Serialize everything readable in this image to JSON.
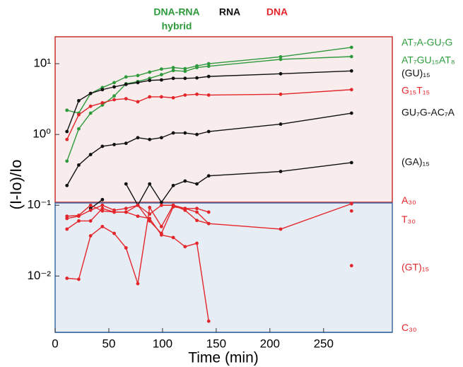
{
  "chart_data": {
    "type": "line",
    "xlabel": "Time (min)",
    "ylabel": "(I-Io)/Io",
    "log_y": true,
    "xlim": [
      0,
      314
    ],
    "xticks": [
      0,
      50,
      100,
      150,
      200,
      250
    ],
    "ylim": [
      0.0016,
      24
    ],
    "yticks": [
      {
        "value": 0.01,
        "label": "10⁻²"
      },
      {
        "value": 0.1,
        "label": "10⁻¹"
      },
      {
        "value": 1,
        "label": "10⁰"
      },
      {
        "value": 10,
        "label": "10¹"
      }
    ],
    "group_labels": [
      {
        "lines": [
          "DNA-RNA",
          "hybrid"
        ],
        "color": "#2e9a3c"
      },
      {
        "lines": [
          "RNA"
        ],
        "color": "#111111"
      },
      {
        "lines": [
          "DNA"
        ],
        "color": "#e3262b"
      }
    ],
    "x": [
      11,
      22,
      33,
      44,
      55,
      66,
      77,
      88,
      99,
      110,
      121,
      132,
      143,
      210,
      276
    ],
    "series": [
      {
        "name": "AT₇A-GU₇G",
        "color": "#2e9a3c",
        "values": [
          2.2,
          2.0,
          3.8,
          4.6,
          5.4,
          6.5,
          6.8,
          7.6,
          8.4,
          8.8,
          8.5,
          9.3,
          10,
          12.5,
          17
        ]
      },
      {
        "name": "AT₇GU₁₅AT₈",
        "color": "#2e9a3c",
        "values": [
          0.42,
          1.2,
          2.0,
          2.6,
          3.5,
          5.2,
          5.6,
          6.2,
          7.0,
          8.0,
          7.8,
          8.8,
          9.2,
          11.5,
          12.6
        ]
      },
      {
        "name": "(GU)₁₅",
        "color": "#111111",
        "values": [
          1.1,
          3.0,
          3.8,
          4.3,
          4.7,
          5.1,
          5.4,
          5.8,
          5.9,
          6.2,
          6.2,
          6.3,
          6.6,
          7.2,
          7.9
        ]
      },
      {
        "name": "G₁₅T₁₅",
        "color": "#e3262b",
        "values": [
          0.85,
          1.9,
          2.5,
          2.8,
          3.1,
          3.2,
          2.9,
          3.4,
          3.4,
          3.3,
          3.6,
          3.7,
          3.6,
          3.7,
          4.3
        ]
      },
      {
        "name": "GU₇G-AC₇A",
        "color": "#111111",
        "values": [
          0.19,
          0.37,
          0.52,
          0.68,
          0.72,
          0.75,
          0.9,
          0.85,
          0.9,
          1.05,
          1.05,
          1.0,
          1.1,
          1.4,
          2.0
        ]
      },
      {
        "name": "(GA)₁₅",
        "color": "#111111",
        "values": [
          null,
          null,
          0.09,
          0.12,
          null,
          0.2,
          0.1,
          0.2,
          0.11,
          0.19,
          0.22,
          0.2,
          0.26,
          0.3,
          0.4
        ]
      },
      {
        "name": "A₃₀",
        "color": "#e3262b",
        "values": [
          0.065,
          0.07,
          0.085,
          0.1,
          0.085,
          0.09,
          0.1,
          0.075,
          0.1,
          0.1,
          0.09,
          0.08,
          0.055,
          0.046,
          0.105
        ]
      },
      {
        "name": "T₃₀",
        "color": "#e3262b",
        "values": [
          0.07,
          0.072,
          0.1,
          0.083,
          0.08,
          0.08,
          0.1,
          0.06,
          0.04,
          0.095,
          0.09,
          0.09,
          0.08,
          null,
          0.083
        ]
      },
      {
        "name": "(GT)₁₅",
        "color": "#e3262b",
        "values": [
          0.0093,
          0.009,
          0.037,
          0.05,
          0.04,
          0.025,
          0.0078,
          0.093,
          0.05,
          0.1,
          0.085,
          0.061,
          0.055,
          null,
          0.014
        ]
      },
      {
        "name": "C₃₀",
        "color": "#e3262b",
        "values": [
          0.046,
          0.06,
          0.06,
          0.09,
          0.08,
          0.08,
          0.07,
          0.065,
          0.038,
          0.035,
          0.026,
          0.029,
          0.0023,
          null,
          null
        ]
      }
    ]
  }
}
